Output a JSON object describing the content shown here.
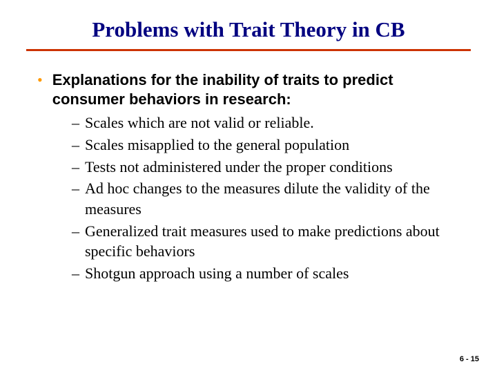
{
  "title": "Problems with Trait Theory in CB",
  "colors": {
    "title_color": "#000080",
    "rule_color": "#cc3300",
    "bullet_color": "#ff9900",
    "text_color": "#000000",
    "background": "#ffffff"
  },
  "typography": {
    "title_fontsize": 31,
    "body_fontsize": 22,
    "pagenum_fontsize": 11,
    "title_family": "Times New Roman",
    "bullet_family": "Arial",
    "sub_family": "Times New Roman"
  },
  "main_bullet": "Explanations for the inability of traits to predict consumer behaviors in research:",
  "sub_items": [
    "Scales which are not valid or reliable.",
    "Scales misapplied to the general population",
    "Tests not administered under the proper conditions",
    "Ad hoc changes to the measures dilute the validity of the measures",
    "Generalized trait measures used to make predictions about specific behaviors",
    "Shotgun approach using a number of scales"
  ],
  "page_number": "6 - 15"
}
